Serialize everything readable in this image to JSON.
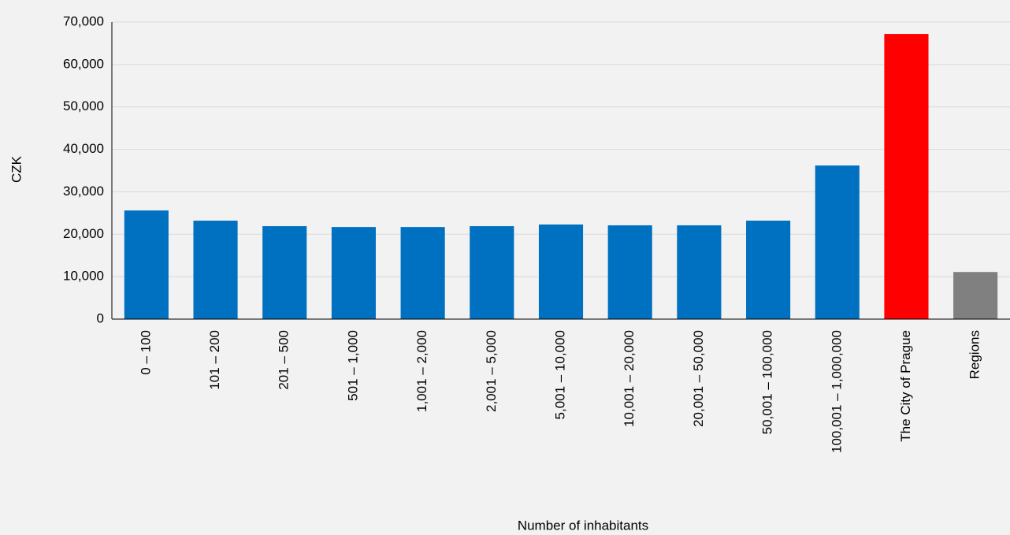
{
  "chart_data": {
    "type": "bar",
    "categories": [
      "0 – 100",
      "101 – 200",
      "201 – 500",
      "501 – 1,000",
      "1,001 – 2,000",
      "2,001 – 5,000",
      "5,001 – 10,000",
      "10,001 – 20,000",
      "20,001 – 50,000",
      "50,001 – 100,000",
      "100,001 – 1,000,000",
      "The City of Prague",
      "Regions"
    ],
    "values": [
      25600,
      23200,
      21900,
      21700,
      21700,
      21900,
      22300,
      22100,
      22100,
      23200,
      36200,
      67200,
      11100
    ],
    "colors": [
      "#0070c0",
      "#0070c0",
      "#0070c0",
      "#0070c0",
      "#0070c0",
      "#0070c0",
      "#0070c0",
      "#0070c0",
      "#0070c0",
      "#0070c0",
      "#0070c0",
      "#ff0000",
      "#808080"
    ],
    "ylim": [
      0,
      70000
    ],
    "yticks": [
      0,
      {
        "value": 10000,
        "label": "10,000"
      },
      {
        "value": 20000,
        "label": "20,000"
      },
      {
        "value": 30000,
        "label": "30,000"
      },
      {
        "value": 40000,
        "label": "40,000"
      },
      {
        "value": 50000,
        "label": "50,000"
      },
      {
        "value": 60000,
        "label": "60,000"
      },
      {
        "value": 70000,
        "label": "70,000"
      }
    ],
    "y_label": "CZK",
    "x_label": "Number of inhabitants",
    "grid": true
  }
}
